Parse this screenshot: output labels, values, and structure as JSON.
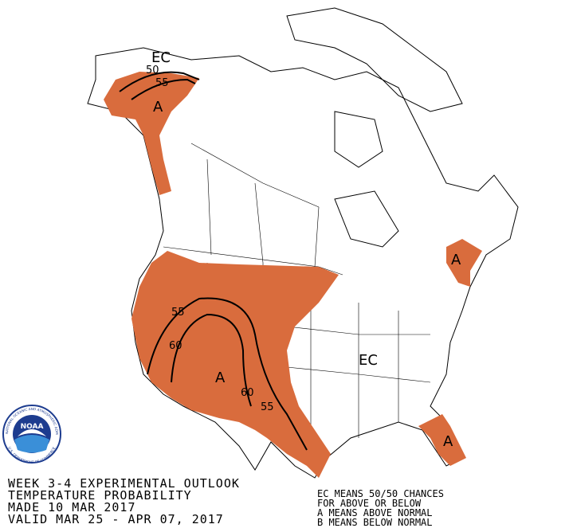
{
  "map_labels": {
    "alaska_ec": "EC",
    "alaska_c50": "50",
    "alaska_c55": "55",
    "alaska_a": "A",
    "west_c55": "55",
    "west_c60a": "60",
    "west_a": "A",
    "west_c60b": "60",
    "west_c55b": "55",
    "northeast_a": "A",
    "east_ec": "EC",
    "florida_a": "A"
  },
  "title_block": {
    "lines": [
      "WEEK 3-4 EXPERIMENTAL OUTLOOK",
      "TEMPERATURE PROBABILITY",
      "MADE  10 MAR 2017",
      "VALID  MAR 25 - APR 07, 2017"
    ]
  },
  "legend": {
    "lines": [
      "EC MEANS 50/50 CHANCES",
      "FOR ABOVE OR BELOW",
      "A MEANS ABOVE NORMAL",
      "B MEANS BELOW NORMAL"
    ]
  },
  "logo": {
    "abbr": "NOAA",
    "ring_top": "NATIONAL OCEANIC AND ATMOSPHERIC ADMINISTRATION",
    "ring_bottom": "U.S. DEPARTMENT OF COMMERCE"
  }
}
